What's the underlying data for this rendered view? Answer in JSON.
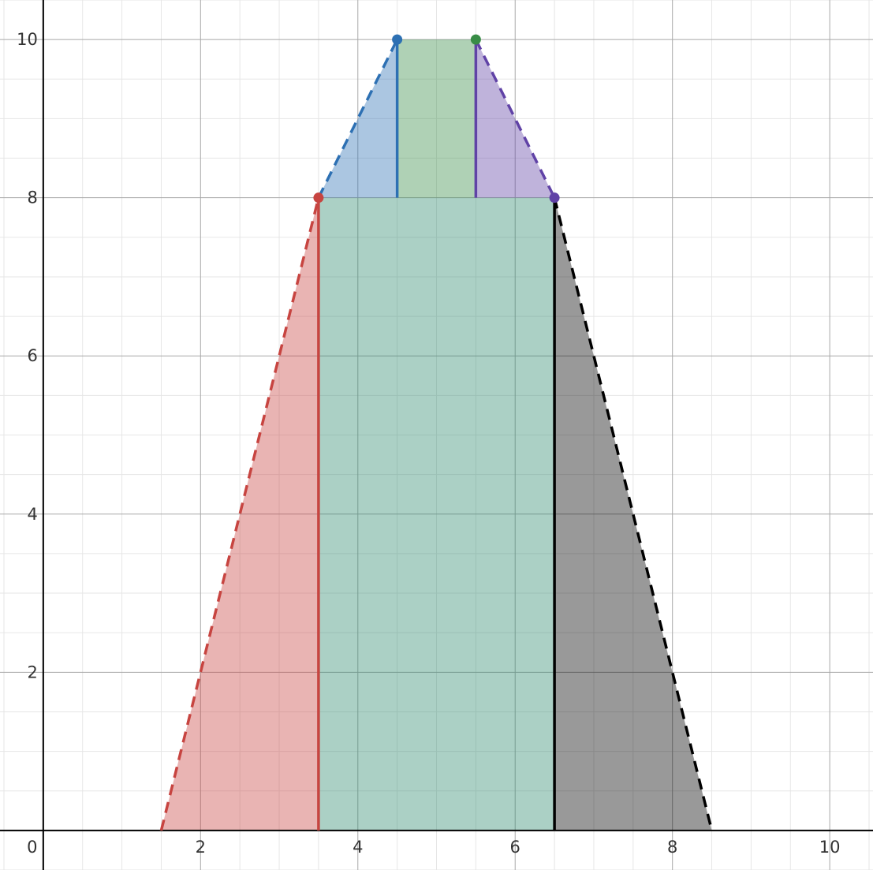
{
  "chart_data": {
    "type": "area",
    "title": "",
    "xlabel": "",
    "ylabel": "",
    "xlim": [
      -0.55,
      10.55
    ],
    "ylim": [
      -0.5,
      10.5
    ],
    "grid": true,
    "legend": "none",
    "x_ticks": [
      {
        "value": 2,
        "label": "2"
      },
      {
        "value": 4,
        "label": "4"
      },
      {
        "value": 6,
        "label": "6"
      },
      {
        "value": 8,
        "label": "8"
      },
      {
        "value": 10,
        "label": "10"
      }
    ],
    "y_ticks": [
      {
        "value": 2,
        "label": "2"
      },
      {
        "value": 4,
        "label": "4"
      },
      {
        "value": 6,
        "label": "6"
      },
      {
        "value": 8,
        "label": "8"
      },
      {
        "value": 10,
        "label": "10"
      }
    ],
    "origin_label": "0",
    "regions": [
      {
        "id": "red-triangle",
        "color": "#c74440",
        "points": [
          [
            1.5,
            0
          ],
          [
            3.5,
            8
          ],
          [
            3.5,
            0
          ]
        ]
      },
      {
        "id": "teal-rectangle",
        "color": "#2d8a6e",
        "points": [
          [
            3.5,
            0
          ],
          [
            3.5,
            8
          ],
          [
            6.5,
            8
          ],
          [
            6.5,
            0
          ]
        ]
      },
      {
        "id": "gray-triangle",
        "color": "#000000",
        "points": [
          [
            6.5,
            0
          ],
          [
            6.5,
            8
          ],
          [
            8.5,
            0
          ]
        ]
      },
      {
        "id": "blue-triangle",
        "color": "#2d70b3",
        "points": [
          [
            3.5,
            8
          ],
          [
            4.5,
            10
          ],
          [
            4.5,
            8
          ]
        ]
      },
      {
        "id": "green-rectangle",
        "color": "#388c46",
        "points": [
          [
            4.5,
            8
          ],
          [
            4.5,
            10
          ],
          [
            5.5,
            10
          ],
          [
            5.5,
            8
          ]
        ]
      },
      {
        "id": "purple-triangle",
        "color": "#6042a6",
        "points": [
          [
            5.5,
            8
          ],
          [
            5.5,
            10
          ],
          [
            6.5,
            8
          ]
        ]
      }
    ],
    "segments": [
      {
        "id": "red-dashed-slope",
        "color": "#c74440",
        "dashed": true,
        "from": [
          1.5,
          0
        ],
        "to": [
          3.5,
          8
        ]
      },
      {
        "id": "red-vertical",
        "color": "#c74440",
        "dashed": false,
        "from": [
          3.5,
          0
        ],
        "to": [
          3.5,
          8
        ]
      },
      {
        "id": "black-vertical",
        "color": "#000000",
        "dashed": false,
        "from": [
          6.5,
          0
        ],
        "to": [
          6.5,
          8
        ]
      },
      {
        "id": "black-dashed-slope",
        "color": "#000000",
        "dashed": true,
        "from": [
          6.5,
          8
        ],
        "to": [
          8.5,
          0
        ]
      },
      {
        "id": "blue-dashed-slope",
        "color": "#2d70b3",
        "dashed": true,
        "from": [
          3.5,
          8
        ],
        "to": [
          4.5,
          10
        ]
      },
      {
        "id": "blue-vertical",
        "color": "#2d70b3",
        "dashed": false,
        "from": [
          4.5,
          8
        ],
        "to": [
          4.5,
          10
        ]
      },
      {
        "id": "purple-vertical",
        "color": "#6042a6",
        "dashed": false,
        "from": [
          5.5,
          8
        ],
        "to": [
          5.5,
          10
        ]
      },
      {
        "id": "purple-dashed-slope",
        "color": "#6042a6",
        "dashed": true,
        "from": [
          5.5,
          10
        ],
        "to": [
          6.5,
          8
        ]
      }
    ],
    "points": [
      {
        "id": "red-point",
        "color": "#c74440",
        "x": 3.5,
        "y": 8
      },
      {
        "id": "blue-point",
        "color": "#2d70b3",
        "x": 4.5,
        "y": 10
      },
      {
        "id": "green-point",
        "color": "#388c46",
        "x": 5.5,
        "y": 10
      },
      {
        "id": "purple-point",
        "color": "#6042a6",
        "x": 6.5,
        "y": 8
      }
    ]
  }
}
